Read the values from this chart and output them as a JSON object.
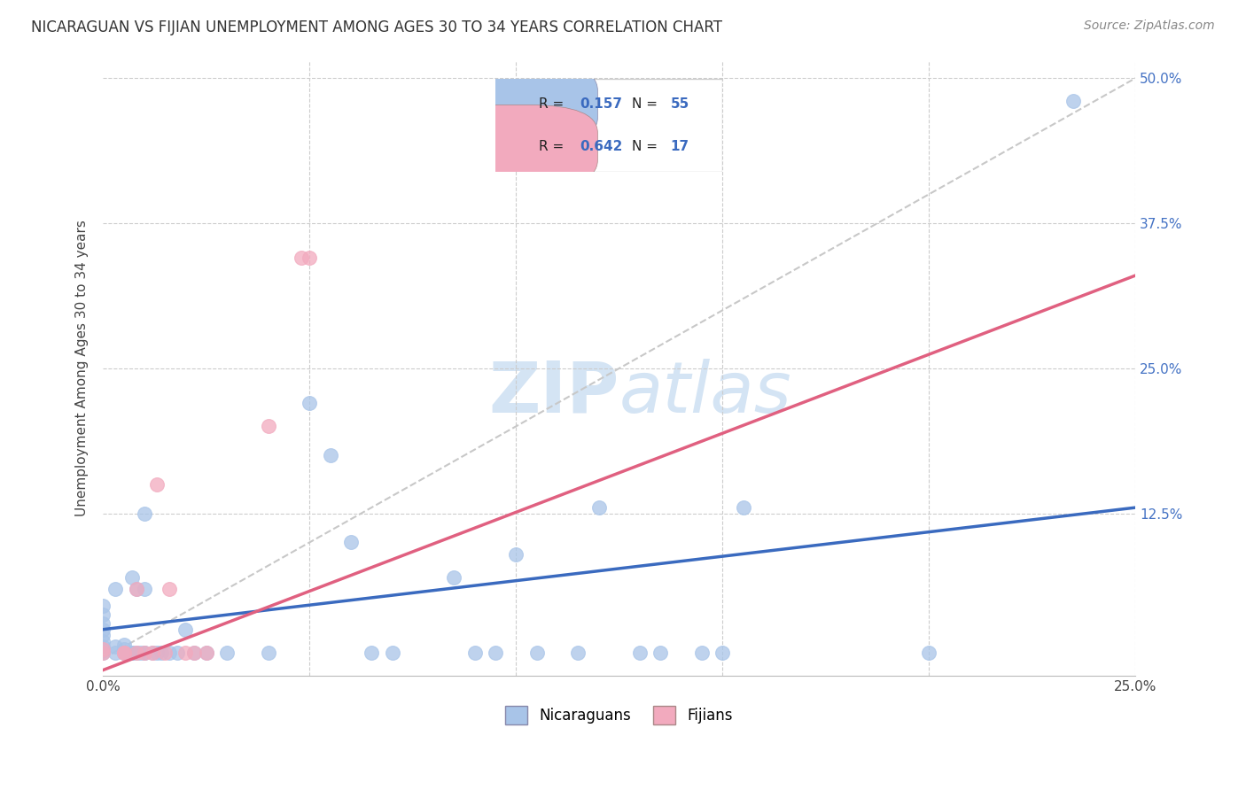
{
  "title": "NICARAGUAN VS FIJIAN UNEMPLOYMENT AMONG AGES 30 TO 34 YEARS CORRELATION CHART",
  "source": "Source: ZipAtlas.com",
  "ylabel": "Unemployment Among Ages 30 to 34 years",
  "xlim": [
    0.0,
    0.25
  ],
  "ylim": [
    -0.015,
    0.515
  ],
  "nicaraguan_color": "#a8c4e8",
  "fijian_color": "#f2aabe",
  "trend_nicaraguan_color": "#3a6abf",
  "trend_fijian_color": "#e06080",
  "trend_dashed_color": "#c8c8c8",
  "background_color": "#ffffff",
  "grid_color": "#cccccc",
  "legend_R_color": "#000000",
  "legend_val_color": "#3a6abf",
  "watermark_color": "#d8e8f8",
  "nicaraguan_x": [
    0.0,
    0.0,
    0.0,
    0.0,
    0.0,
    0.0,
    0.0,
    0.0,
    0.003,
    0.003,
    0.003,
    0.005,
    0.005,
    0.005,
    0.005,
    0.005,
    0.007,
    0.007,
    0.007,
    0.008,
    0.008,
    0.009,
    0.01,
    0.01,
    0.01,
    0.01,
    0.012,
    0.013,
    0.014,
    0.016,
    0.018,
    0.02,
    0.022,
    0.025,
    0.03,
    0.04,
    0.05,
    0.055,
    0.06,
    0.065,
    0.07,
    0.085,
    0.09,
    0.095,
    0.1,
    0.105,
    0.115,
    0.12,
    0.13,
    0.135,
    0.145,
    0.15,
    0.155,
    0.2,
    0.235
  ],
  "nicaraguan_y": [
    0.005,
    0.01,
    0.015,
    0.02,
    0.025,
    0.03,
    0.038,
    0.045,
    0.005,
    0.01,
    0.06,
    0.005,
    0.005,
    0.005,
    0.008,
    0.012,
    0.005,
    0.005,
    0.07,
    0.005,
    0.06,
    0.005,
    0.005,
    0.005,
    0.06,
    0.125,
    0.005,
    0.005,
    0.005,
    0.005,
    0.005,
    0.025,
    0.005,
    0.005,
    0.005,
    0.005,
    0.22,
    0.175,
    0.1,
    0.005,
    0.005,
    0.07,
    0.005,
    0.005,
    0.09,
    0.005,
    0.005,
    0.13,
    0.005,
    0.005,
    0.005,
    0.005,
    0.13,
    0.005,
    0.48
  ],
  "fijian_x": [
    0.0,
    0.0,
    0.005,
    0.005,
    0.008,
    0.008,
    0.01,
    0.012,
    0.013,
    0.015,
    0.016,
    0.02,
    0.022,
    0.025,
    0.04,
    0.048,
    0.05
  ],
  "fijian_y": [
    0.005,
    0.008,
    0.005,
    0.005,
    0.005,
    0.06,
    0.005,
    0.005,
    0.15,
    0.005,
    0.06,
    0.005,
    0.005,
    0.005,
    0.2,
    0.345,
    0.345
  ],
  "trend_nic_x0": 0.0,
  "trend_nic_y0": 0.025,
  "trend_nic_x1": 0.25,
  "trend_nic_y1": 0.13,
  "trend_fij_x0": 0.0,
  "trend_fij_y0": -0.01,
  "trend_fij_x1": 0.25,
  "trend_fij_y1": 0.33,
  "ref_line_x0": 0.0,
  "ref_line_y0": 0.0,
  "ref_line_x1": 0.25,
  "ref_line_y1": 0.5
}
